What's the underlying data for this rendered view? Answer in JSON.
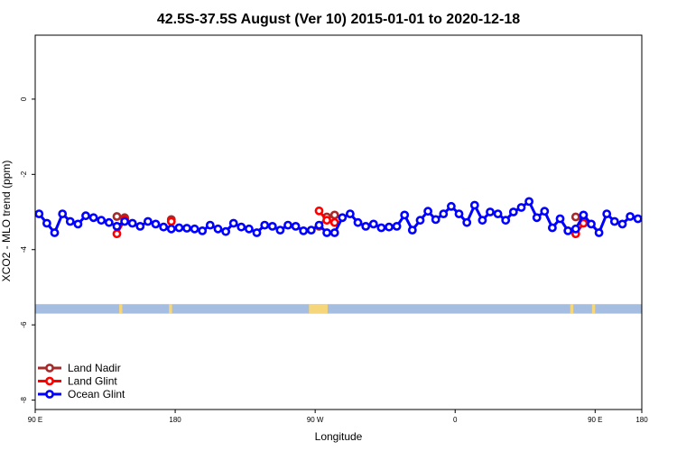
{
  "chart_data": {
    "type": "line",
    "title": "42.5S-37.5S August (Ver 10)   2015-01-01 to 2020-12-18",
    "xlabel": "Longitude",
    "ylabel": "XCO2 - MLO trend (ppm)",
    "xlim": [
      90,
      480
    ],
    "ylim": [
      -8.25,
      1.7
    ],
    "x_ticks": [
      {
        "value": 90,
        "label": "90 E"
      },
      {
        "value": 180,
        "label": "180"
      },
      {
        "value": 270,
        "label": "90 W"
      },
      {
        "value": 360,
        "label": "0"
      },
      {
        "value": 450,
        "label": "90 E"
      },
      {
        "value": 540,
        "label": "180"
      }
    ],
    "y_ticks": [
      {
        "value": 0,
        "label": "0"
      },
      {
        "value": -2,
        "label": "-2"
      },
      {
        "value": -4,
        "label": "-4"
      },
      {
        "value": -6,
        "label": "-6"
      },
      {
        "value": -8,
        "label": "-8"
      }
    ],
    "legend_position": "bottom-left",
    "land_mask": {
      "y_range": [
        -5.45,
        -5.7
      ],
      "ocean_color": "#a5bde0",
      "land_color": "#f5d67a",
      "land_segments": [
        [
          144,
          146
        ],
        [
          176,
          178
        ],
        [
          266,
          278
        ],
        [
          434,
          436
        ],
        [
          448,
          450
        ]
      ]
    },
    "series": [
      {
        "name": "Land Nadir",
        "color": "#a52a2a",
        "points": [
          [
            142.5,
            -3.12
          ],
          [
            147.5,
            -3.15
          ],
          [
            177.5,
            -3.2
          ],
          [
            272.5,
            -3.38
          ],
          [
            277.5,
            -3.13
          ],
          [
            282.5,
            -3.08
          ],
          [
            437.5,
            -3.13
          ],
          [
            442.5,
            -3.18
          ],
          [
            537.5,
            -3.22
          ]
        ]
      },
      {
        "name": "Land Glint",
        "color": "#ff0000",
        "points": [
          [
            142.5,
            -3.58
          ],
          [
            147.5,
            -3.2
          ],
          [
            177.5,
            -3.25
          ],
          [
            272.5,
            -2.97
          ],
          [
            277.5,
            -3.22
          ],
          [
            282.5,
            -3.28
          ],
          [
            437.5,
            -3.58
          ],
          [
            442.5,
            -3.3
          ],
          [
            537.5,
            -3.32
          ]
        ]
      },
      {
        "name": "Ocean Glint",
        "color": "#0000ff",
        "x": [
          92.5,
          97.5,
          102.5,
          107.5,
          112.5,
          117.5,
          122.5,
          127.5,
          132.5,
          137.5,
          142.5,
          147.5,
          152.5,
          157.5,
          162.5,
          167.5,
          172.5,
          177.5,
          182.5,
          187.5,
          192.5,
          197.5,
          202.5,
          207.5,
          212.5,
          217.5,
          222.5,
          227.5,
          232.5,
          237.5,
          242.5,
          247.5,
          252.5,
          257.5,
          262.5,
          267.5,
          272.5,
          277.5,
          282.5,
          287.5,
          292.5,
          297.5,
          302.5,
          307.5,
          312.5,
          317.5,
          322.5,
          327.5,
          332.5,
          337.5,
          342.5,
          347.5,
          352.5,
          357.5,
          362.5,
          367.5,
          372.5,
          377.5,
          382.5,
          387.5,
          392.5,
          397.5,
          402.5,
          407.5,
          412.5,
          417.5,
          422.5,
          427.5,
          432.5,
          437.5,
          442.5,
          447.5,
          452.5,
          457.5,
          462.5,
          467.5,
          472.5,
          477.5
        ],
        "values": [
          -3.05,
          -3.3,
          -3.55,
          -3.05,
          -3.25,
          -3.32,
          -3.1,
          -3.15,
          -3.22,
          -3.28,
          -3.38,
          -3.25,
          -3.3,
          -3.38,
          -3.25,
          -3.32,
          -3.4,
          -3.45,
          -3.42,
          -3.43,
          -3.45,
          -3.5,
          -3.35,
          -3.45,
          -3.52,
          -3.3,
          -3.4,
          -3.45,
          -3.55,
          -3.35,
          -3.38,
          -3.48,
          -3.35,
          -3.38,
          -3.5,
          -3.48,
          -3.35,
          -3.55,
          -3.55,
          -3.15,
          -3.05,
          -3.28,
          -3.38,
          -3.32,
          -3.42,
          -3.4,
          -3.38,
          -3.08,
          -3.48,
          -3.22,
          -2.98,
          -3.2,
          -3.05,
          -2.85,
          -3.05,
          -3.28,
          -2.82,
          -3.22,
          -3.0,
          -3.05,
          -3.22,
          -3.0,
          -2.88,
          -2.72,
          -3.15,
          -2.98,
          -3.42,
          -3.18,
          -3.5,
          -3.45,
          -3.08,
          -3.32,
          -3.55,
          -3.05,
          -3.25,
          -3.32,
          -3.12,
          -3.18
        ]
      }
    ]
  }
}
